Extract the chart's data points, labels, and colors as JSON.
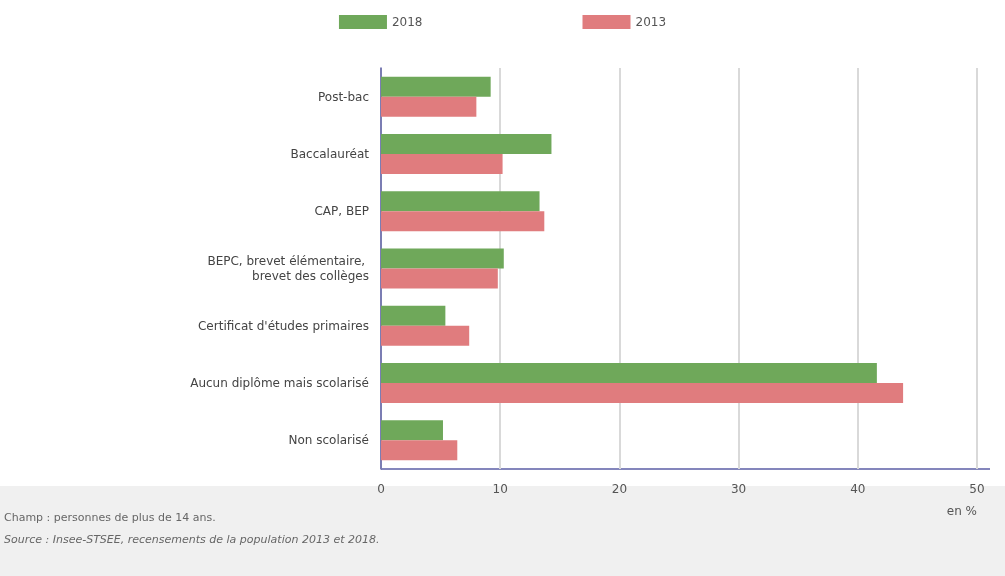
{
  "chart_data": {
    "type": "bar",
    "orientation": "horizontal",
    "xlabel": "en %",
    "categories": [
      "Post-bac",
      "Baccalauréat",
      "CAP, BEP",
      "BEPC, brevet élémentaire, brevet des collèges",
      "Certificat d'études primaires",
      "Aucun diplôme mais scolarisé",
      "Non scolarisé"
    ],
    "series": [
      {
        "name": "2018",
        "color": "#6fa85a",
        "values": [
          9.2,
          14.3,
          13.3,
          10.3,
          5.4,
          41.6,
          5.2
        ]
      },
      {
        "name": "2013",
        "color": "#e07c7e",
        "values": [
          8.0,
          10.2,
          13.7,
          9.8,
          7.4,
          43.8,
          6.4
        ]
      }
    ],
    "xlim": [
      0,
      50
    ],
    "xticks": [
      0,
      10,
      20,
      30,
      40,
      50
    ],
    "grid": "x",
    "legend": "top",
    "annotations": [
      "Champ : personnes de plus de 14 ans.",
      "Source : Insee-STSEE, recensements de la population 2013 et 2018."
    ]
  }
}
